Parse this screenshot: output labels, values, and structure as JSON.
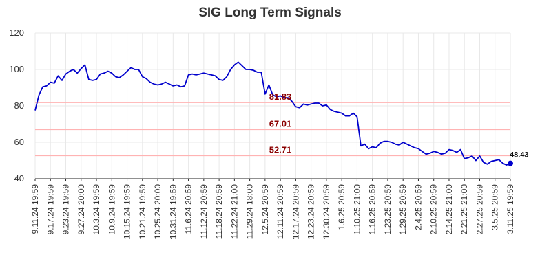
{
  "chart_data": {
    "type": "line",
    "title": "SIG Long Term Signals",
    "xlabel": "",
    "ylabel": "",
    "ylim": [
      40,
      120
    ],
    "yticks": [
      40,
      60,
      80,
      100,
      120
    ],
    "grid": true,
    "line_color": "#0000cc",
    "level_line_color": "#ffb3b3",
    "level_label_color": "#8b0000",
    "last_point_color": "#0000cc",
    "xtick_labels": [
      "9.11.24 19:59",
      "9.17.24 19:59",
      "9.23.24 19:59",
      "9.27.24 20:00",
      "10.3.24 19:59",
      "10.9.24 19:59",
      "10.15.24 19:59",
      "10.21.24 19:59",
      "10.25.24 20:00",
      "10.31.24 19:59",
      "11.6.24 20:59",
      "11.12.24 20:59",
      "11.18.24 20:59",
      "11.22.24 21:00",
      "11.29.24 18:00",
      "12.5.24 20:59",
      "12.11.24 20:59",
      "12.17.24 20:59",
      "12.23.24 20:59",
      "12.30.24 20:59",
      "1.6.25 20:59",
      "1.10.25 21:00",
      "1.16.25 20:59",
      "1.23.25 20:59",
      "1.29.25 20:59",
      "2.4.25 20:59",
      "2.10.25 20:59",
      "2.14.25 21:00",
      "2.21.25 21:00",
      "2.27.25 20:59",
      "3.5.25 20:59",
      "3.11.25 19:59"
    ],
    "levels": [
      {
        "value": 81.83,
        "label": "81.83"
      },
      {
        "value": 67.01,
        "label": "67.01"
      },
      {
        "value": 52.71,
        "label": "52.71"
      }
    ],
    "last_value_label": "48.43",
    "series": [
      {
        "values": [
          77.5,
          86.0,
          90.5,
          91.0,
          93.0,
          92.5,
          96.5,
          94.0,
          97.5,
          99.0,
          100.0,
          98.0,
          100.5,
          102.5,
          94.5,
          94.0,
          94.5,
          97.5,
          98.0,
          99.0,
          98.0,
          96.0,
          95.5,
          97.0,
          99.0,
          101.0,
          100.0,
          100.0,
          96.0,
          95.0,
          93.0,
          92.0,
          91.5,
          92.0,
          93.0,
          92.0,
          91.0,
          91.5,
          90.5,
          91.0,
          97.0,
          97.5,
          97.0,
          97.5,
          98.0,
          97.5,
          97.0,
          96.5,
          94.5,
          94.0,
          96.0,
          100.0,
          102.5,
          104.0,
          102.0,
          100.0,
          100.0,
          99.5,
          98.5,
          98.5,
          86.5,
          91.5,
          86.0,
          85.0,
          85.5,
          84.5,
          84.5,
          82.5,
          79.5,
          79.0,
          81.0,
          80.5,
          81.0,
          81.5,
          81.5,
          80.0,
          80.5,
          78.0,
          77.0,
          76.5,
          76.0,
          74.5,
          74.5,
          76.0,
          74.0,
          58.0,
          59.0,
          56.5,
          57.5,
          57.0,
          59.5,
          60.5,
          60.5,
          60.0,
          59.0,
          58.5,
          60.0,
          59.0,
          58.0,
          57.0,
          56.5,
          55.0,
          53.5,
          54.0,
          55.0,
          54.5,
          53.5,
          54.0,
          56.0,
          55.5,
          54.5,
          56.0,
          51.0,
          51.5,
          52.5,
          50.0,
          52.5,
          49.0,
          48.0,
          49.5,
          50.0,
          50.5,
          48.5,
          47.5,
          48.43
        ]
      }
    ]
  }
}
